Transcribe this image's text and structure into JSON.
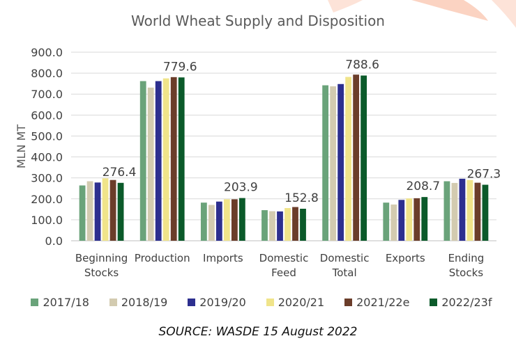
{
  "chart_data": {
    "type": "bar",
    "title": "World Wheat Supply and Disposition",
    "ylabel": "MLN MT",
    "xlabel": "",
    "ylim": [
      0,
      900
    ],
    "yticks": [
      "0.0",
      "100.0",
      "200.0",
      "300.0",
      "400.0",
      "500.0",
      "600.0",
      "700.0",
      "800.0",
      "900.0"
    ],
    "grid": true,
    "legend_position": "bottom",
    "categories": [
      [
        "Beginning",
        "Stocks"
      ],
      [
        "Production"
      ],
      [
        "Imports"
      ],
      [
        "Domestic",
        "Feed"
      ],
      [
        "Domestic",
        "Total"
      ],
      [
        "Exports"
      ],
      [
        "Ending",
        "Stocks"
      ]
    ],
    "series": [
      {
        "name": "2017/18",
        "color": "#6aa37a",
        "values": [
          264,
          762,
          182,
          146,
          742,
          182,
          284
        ]
      },
      {
        "name": "2018/19",
        "color": "#d3cbb0",
        "values": [
          284,
          731,
          171,
          141,
          737,
          173,
          276
        ]
      },
      {
        "name": "2019/20",
        "color": "#2d2f8f",
        "values": [
          278,
          762,
          187,
          140,
          748,
          195,
          296
        ]
      },
      {
        "name": "2020/21",
        "color": "#f0e48a",
        "values": [
          298,
          775,
          198,
          156,
          782,
          202,
          290
        ]
      },
      {
        "name": "2021/22e",
        "color": "#6b3d2a",
        "values": [
          290,
          781,
          198,
          161,
          793,
          203,
          277
        ]
      },
      {
        "name": "2022/23f",
        "color": "#0b5a2a",
        "values": [
          276.4,
          779.6,
          203.9,
          152.8,
          788.6,
          208.7,
          267.3
        ]
      }
    ],
    "annotations": [
      {
        "category_index": 0,
        "text": "276.4",
        "value": 276.4
      },
      {
        "category_index": 1,
        "text": "779.6",
        "value": 779.6
      },
      {
        "category_index": 2,
        "text": "203.9",
        "value": 203.9
      },
      {
        "category_index": 3,
        "text": "152.8",
        "value": 152.8
      },
      {
        "category_index": 4,
        "text": "788.6",
        "value": 788.6
      },
      {
        "category_index": 5,
        "text": "208.7",
        "value": 208.7
      },
      {
        "category_index": 6,
        "text": "267.3",
        "value": 267.3
      }
    ]
  },
  "source": "SOURCE: WASDE 15 August 2022",
  "colors": {
    "decor_accent": "#fde3d8",
    "grid": "#d9d9d9",
    "text": "#595959"
  }
}
